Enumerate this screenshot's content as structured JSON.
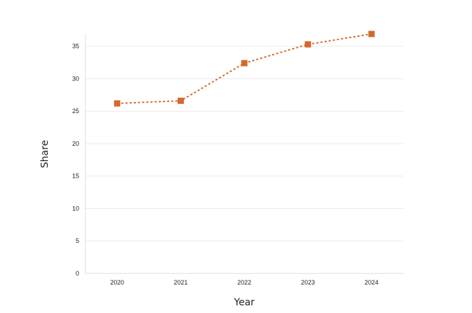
{
  "chart_data": {
    "type": "line",
    "title": "",
    "xlabel": "Year",
    "ylabel": "Share",
    "categories": [
      "2020",
      "2021",
      "2022",
      "2023",
      "2024"
    ],
    "series": [
      {
        "values": [
          26.2,
          26.6,
          32.4,
          35.3,
          36.9
        ],
        "color": "#d4692b",
        "line_style": "dotted",
        "marker": "square"
      }
    ],
    "ylim": [
      0,
      37
    ],
    "yticks": [
      0,
      5,
      10,
      15,
      20,
      25,
      30,
      35
    ],
    "grid": "horizontal",
    "legend": "none"
  }
}
